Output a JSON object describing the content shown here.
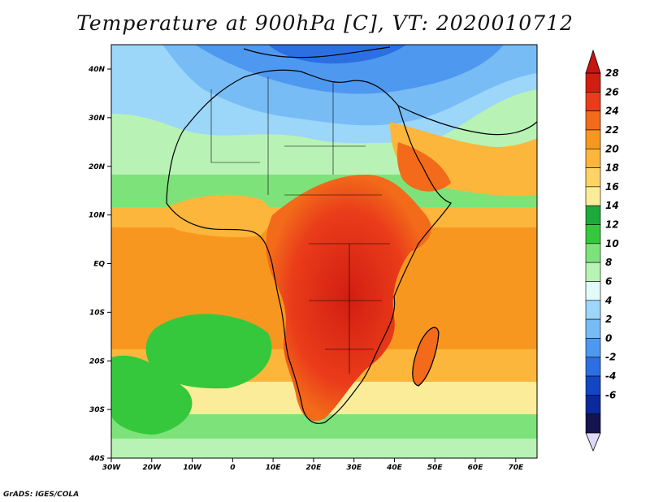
{
  "title": "Temperature at 900hPa [C], VT: 2020010712",
  "credit": "GrADS: IGES/COLA",
  "x_ticks": [
    "30W",
    "20W",
    "10W",
    "0",
    "10E",
    "20E",
    "30E",
    "40E",
    "50E",
    "60E",
    "70E"
  ],
  "y_ticks": [
    "40N",
    "30N",
    "20N",
    "10N",
    "EQ",
    "10S",
    "20S",
    "30S",
    "40S"
  ],
  "colorbar": {
    "labels": [
      "28",
      "26",
      "24",
      "22",
      "20",
      "18",
      "16",
      "14",
      "12",
      "10",
      "8",
      "6",
      "4",
      "2",
      "0",
      "-2",
      "-4",
      "-6"
    ],
    "colors": [
      "#d21e12",
      "#ea3c1a",
      "#f26a1a",
      "#f8971f",
      "#fbb63b",
      "#fdd365",
      "#fbec9a",
      "#1ea93c",
      "#36c83c",
      "#7ee27a",
      "#b8f2b4",
      "#e2fbf9",
      "#9cd6f9",
      "#78bcf5",
      "#4f98f0",
      "#2b6fe2",
      "#1446c4",
      "#0a2a9c",
      "#14144e"
    ],
    "over_color": "#c81410",
    "under_color": "#e0daf8"
  },
  "legend_icons": [
    "up-triangle-icon",
    "down-triangle-icon"
  ]
}
